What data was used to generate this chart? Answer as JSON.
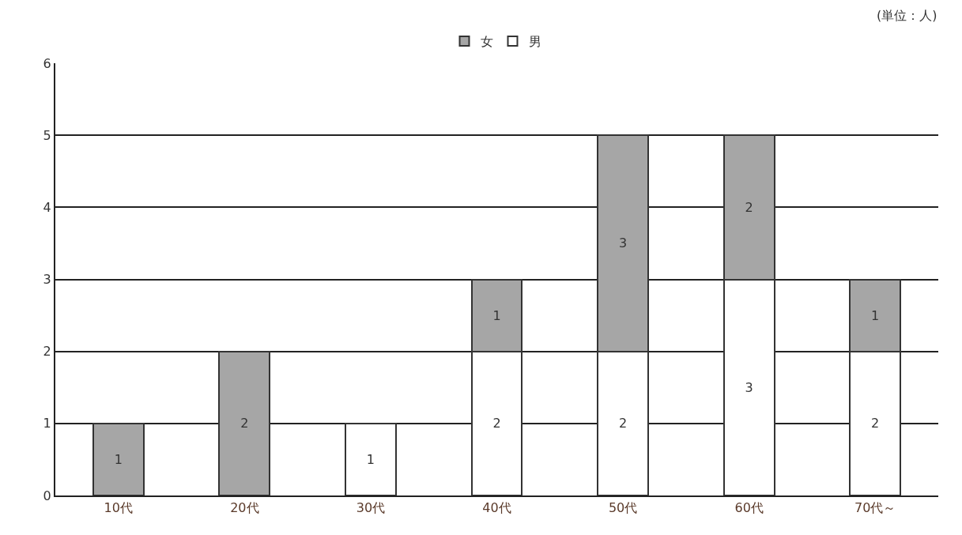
{
  "chart_data": {
    "type": "bar",
    "stacked": true,
    "categories": [
      "10代",
      "20代",
      "30代",
      "40代",
      "50代",
      "60代",
      "70代～"
    ],
    "series": [
      {
        "name": "男",
        "color": "#ffffff",
        "values": [
          null,
          null,
          1,
          2,
          2,
          3,
          2
        ]
      },
      {
        "name": "女",
        "color": "#a6a6a6",
        "values": [
          1,
          2,
          null,
          1,
          3,
          2,
          1
        ]
      }
    ],
    "ylim": [
      0,
      6
    ],
    "yticks": [
      0,
      1,
      2,
      3,
      4,
      5,
      6
    ],
    "grid": "y",
    "legend": "top",
    "data_labels": true,
    "annotations": [
      "(単位：人)"
    ]
  }
}
